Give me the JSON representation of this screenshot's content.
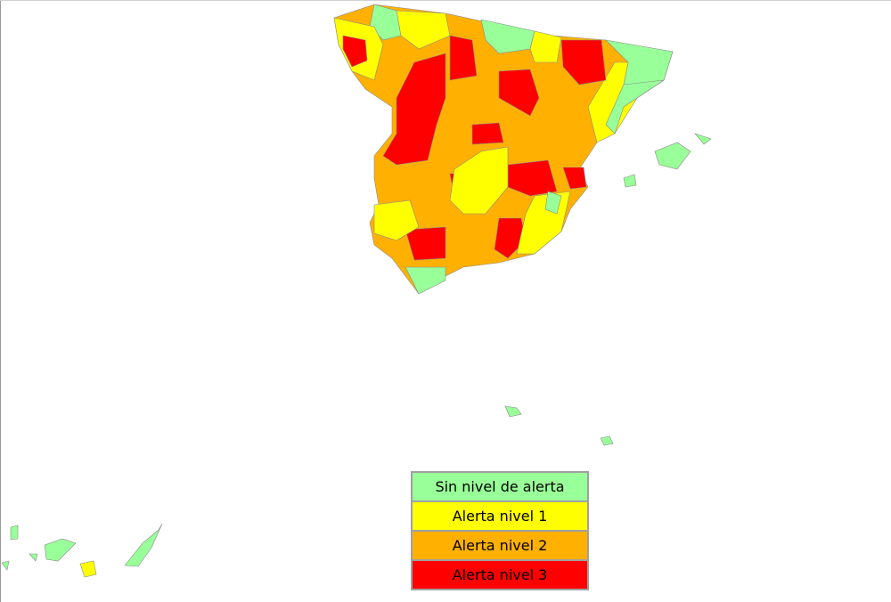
{
  "legend": {
    "items": [
      {
        "label": "Sin nivel de alerta",
        "color": "#99ff99"
      },
      {
        "label": "Alerta nivel 1",
        "color": "#ffff00"
      },
      {
        "label": "Alerta nivel 2",
        "color": "#ffb000"
      },
      {
        "label": "Alerta nivel 3",
        "color": "#ff0000"
      }
    ]
  }
}
